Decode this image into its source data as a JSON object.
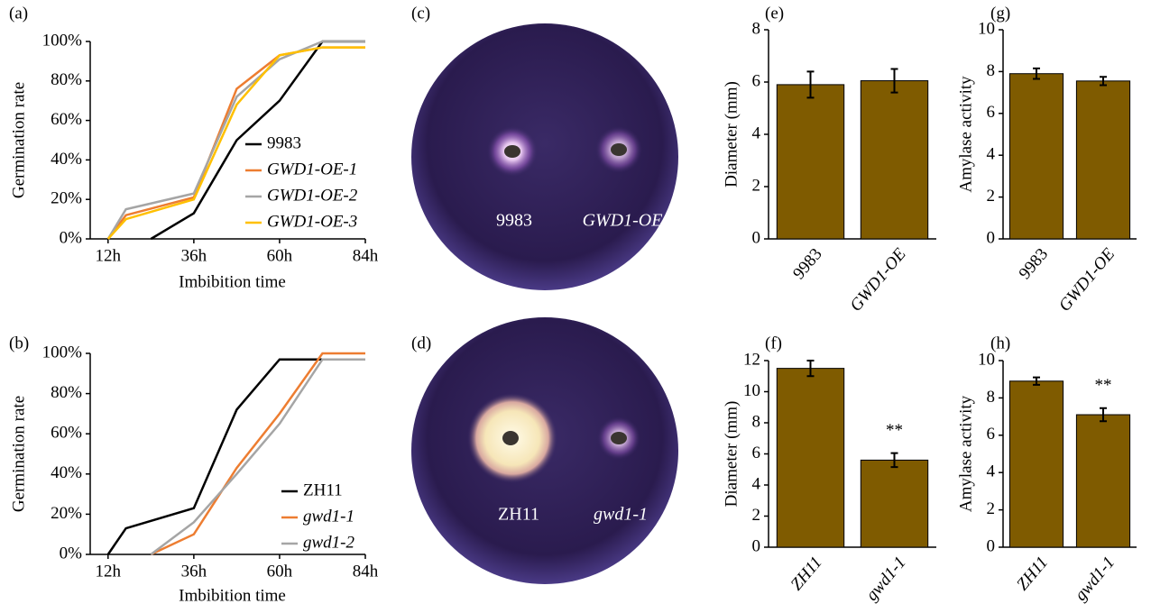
{
  "chart_data": [
    {
      "type": "line",
      "panel": "(a)",
      "ylabel": "Germination rate",
      "xlabel": "Imbibition time",
      "xlim": [
        7,
        84
      ],
      "xticks": [
        {
          "value": 12,
          "label": "12h"
        },
        {
          "value": 36,
          "label": "36h"
        },
        {
          "value": 60,
          "label": "60h"
        },
        {
          "value": 84,
          "label": "84h"
        }
      ],
      "ylim": [
        0,
        100
      ],
      "yticks": [
        {
          "value": 0,
          "label": "0%"
        },
        {
          "value": 20,
          "label": "20%"
        },
        {
          "value": 40,
          "label": "40%"
        },
        {
          "value": 60,
          "label": "60%"
        },
        {
          "value": 80,
          "label": "80%"
        },
        {
          "value": 100,
          "label": "100%"
        }
      ],
      "series": [
        {
          "name": "9983",
          "color": "#000000",
          "x": [
            24,
            36,
            48,
            60,
            72,
            84
          ],
          "values": [
            0,
            13,
            50,
            70,
            100,
            100
          ]
        },
        {
          "name": "GWD1-OE-1",
          "color": "#ed7d31",
          "x": [
            12,
            17,
            36,
            48,
            60,
            72,
            84
          ],
          "values": [
            0,
            12,
            21,
            76,
            93,
            97,
            97
          ]
        },
        {
          "name": "GWD1-OE-2",
          "color": "#a5a5a5",
          "x": [
            12,
            17,
            36,
            48,
            60,
            72,
            84
          ],
          "values": [
            0,
            15,
            23,
            72,
            91,
            100,
            100
          ]
        },
        {
          "name": "GWD1-OE-3",
          "color": "#ffc000",
          "x": [
            12,
            17,
            36,
            48,
            60,
            72,
            84
          ],
          "values": [
            0,
            10,
            20,
            68,
            93,
            97,
            97
          ]
        }
      ]
    },
    {
      "type": "line",
      "panel": "(b)",
      "ylabel": "Germination rate",
      "xlabel": "Imbibition time",
      "xlim": [
        7,
        84
      ],
      "xticks": [
        {
          "value": 12,
          "label": "12h"
        },
        {
          "value": 36,
          "label": "36h"
        },
        {
          "value": 60,
          "label": "60h"
        },
        {
          "value": 84,
          "label": "84h"
        }
      ],
      "ylim": [
        0,
        100
      ],
      "yticks": [
        {
          "value": 0,
          "label": "0%"
        },
        {
          "value": 20,
          "label": "20%"
        },
        {
          "value": 40,
          "label": "40%"
        },
        {
          "value": 60,
          "label": "60%"
        },
        {
          "value": 80,
          "label": "80%"
        },
        {
          "value": 100,
          "label": "100%"
        }
      ],
      "series": [
        {
          "name": "ZH11",
          "color": "#000000",
          "x": [
            12,
            17,
            36,
            48,
            60,
            72,
            84
          ],
          "values": [
            0,
            13,
            23,
            72,
            97,
            97,
            97
          ]
        },
        {
          "name": "gwd1-1",
          "color": "#ed7d31",
          "x": [
            24,
            36,
            48,
            60,
            72,
            84
          ],
          "values": [
            0,
            10,
            43,
            70,
            100,
            100
          ]
        },
        {
          "name": "gwd1-2",
          "color": "#a5a5a5",
          "x": [
            24,
            36,
            48,
            60,
            72,
            84
          ],
          "values": [
            0,
            16,
            40,
            65,
            97,
            97
          ]
        }
      ]
    },
    {
      "type": "bar",
      "panel": "(e)",
      "ylabel": "Diameter (mm)",
      "categories": [
        "9983",
        "GWD1-OE"
      ],
      "values": [
        5.9,
        6.05
      ],
      "errors": [
        0.5,
        0.45
      ],
      "color": "#7f5b00",
      "ylim": [
        0,
        8
      ],
      "yticks": [
        0,
        2,
        4,
        6,
        8
      ]
    },
    {
      "type": "bar",
      "panel": "(g)",
      "ylabel": "Amylase activity",
      "categories": [
        "9983",
        "GWD1-OE"
      ],
      "values": [
        7.9,
        7.55
      ],
      "errors": [
        0.25,
        0.2
      ],
      "color": "#7f5b00",
      "ylim": [
        0,
        10
      ],
      "yticks": [
        0,
        2,
        4,
        6,
        8,
        10
      ]
    },
    {
      "type": "bar",
      "panel": "(f)",
      "ylabel": "Diameter (mm)",
      "categories": [
        "ZH11",
        "gwd1-1"
      ],
      "values": [
        11.5,
        5.6
      ],
      "errors": [
        0.5,
        0.45
      ],
      "value_annotations": [
        null,
        "**"
      ],
      "color": "#7f5b00",
      "ylim": [
        0,
        12
      ],
      "yticks": [
        0,
        2,
        4,
        6,
        8,
        10,
        12
      ]
    },
    {
      "type": "bar",
      "panel": "(h)",
      "ylabel": "Amylase activity",
      "categories": [
        "ZH11",
        "gwd1-1"
      ],
      "values": [
        8.9,
        7.1
      ],
      "errors": [
        0.2,
        0.35
      ],
      "value_annotations": [
        null,
        "**"
      ],
      "color": "#7f5b00",
      "ylim": [
        0,
        10
      ],
      "yticks": [
        0,
        2,
        4,
        6,
        8,
        10
      ]
    }
  ],
  "plates": [
    {
      "panel": "(c)",
      "labels": [
        "9983",
        "GWD1-OE"
      ]
    },
    {
      "panel": "(d)",
      "labels": [
        "ZH11",
        "gwd1-1"
      ]
    }
  ]
}
